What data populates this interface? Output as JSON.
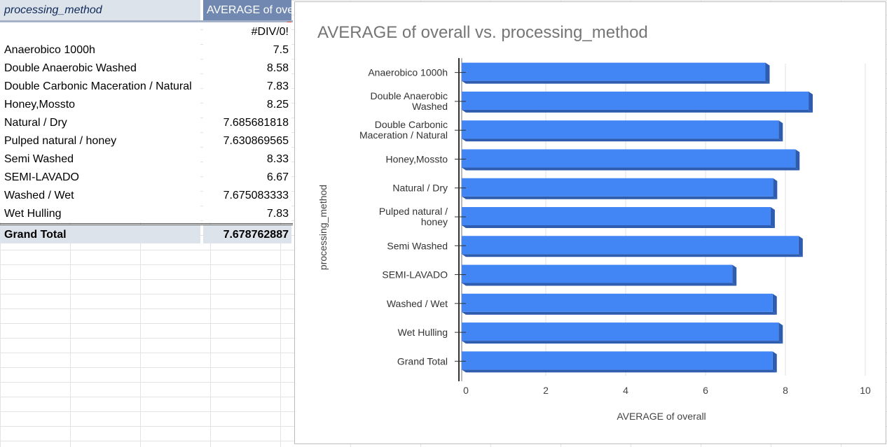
{
  "pivot": {
    "header": {
      "row_label": "processing_method",
      "value_label": "AVERAGE of ove"
    },
    "rows": [
      {
        "label": "",
        "value": "#DIV/0!"
      },
      {
        "label": "Anaerobico 1000h",
        "value": "7.5"
      },
      {
        "label": "Double Anaerobic Washed",
        "value": "8.58"
      },
      {
        "label": "Double Carbonic Maceration / Natural",
        "value": "7.83"
      },
      {
        "label": "Honey,Mossto",
        "value": "8.25"
      },
      {
        "label": "Natural / Dry",
        "value": "7.685681818"
      },
      {
        "label": "Pulped natural / honey",
        "value": "7.630869565"
      },
      {
        "label": "Semi Washed",
        "value": "8.33"
      },
      {
        "label": "SEMI-LAVADO",
        "value": "6.67"
      },
      {
        "label": "Washed / Wet",
        "value": "7.675083333"
      },
      {
        "label": "Wet Hulling",
        "value": "7.83"
      }
    ],
    "grand_total": {
      "label": "Grand Total",
      "value": "7.678762887"
    }
  },
  "chart_data": {
    "type": "bar",
    "orientation": "horizontal",
    "title": "AVERAGE of overall vs. processing_method",
    "xlabel": "AVERAGE of overall",
    "ylabel": "processing_method",
    "categories": [
      [
        "Anaerobico 1000h"
      ],
      [
        "Double Anaerobic",
        "Washed"
      ],
      [
        "Double Carbonic",
        "Maceration / Natural"
      ],
      [
        "Honey,Mossto"
      ],
      [
        "Natural / Dry"
      ],
      [
        "Pulped natural /",
        "honey"
      ],
      [
        "Semi Washed"
      ],
      [
        "SEMI-LAVADO"
      ],
      [
        "Washed / Wet"
      ],
      [
        "Wet Hulling"
      ],
      [
        "Grand Total"
      ]
    ],
    "values": [
      7.5,
      8.58,
      7.83,
      8.25,
      7.69,
      7.63,
      8.33,
      6.67,
      7.68,
      7.83,
      7.68
    ],
    "xlim": [
      0,
      10
    ],
    "xticks": [
      "0",
      "2",
      "4",
      "6",
      "8",
      "10"
    ],
    "grid": true,
    "bar_color": "#4285f4",
    "bar_side_color": "#2e5db0",
    "bar_top_color": "#6fa0f7"
  }
}
